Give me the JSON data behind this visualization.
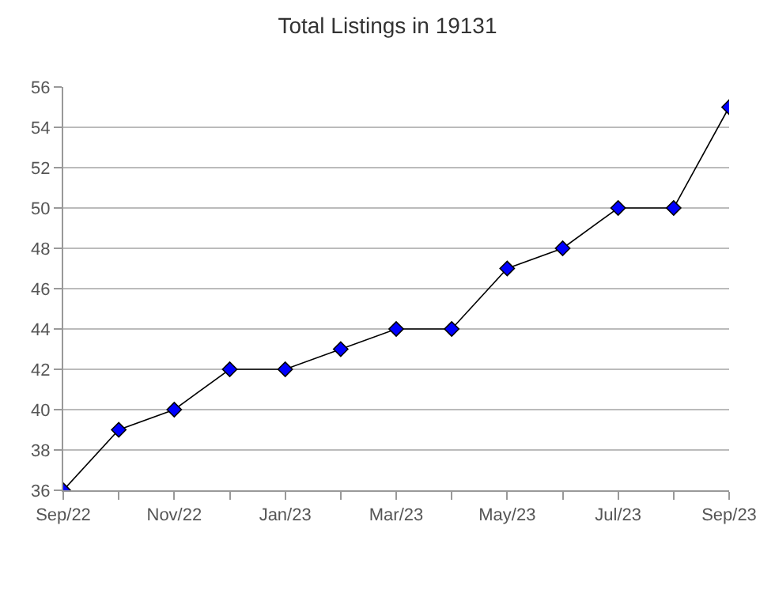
{
  "chart_data": {
    "type": "line",
    "title": "Total Listings in 19131",
    "categories": [
      "Sep/22",
      null,
      "Nov/22",
      null,
      "Jan/23",
      null,
      "Mar/23",
      null,
      "May/23",
      null,
      "Jul/23",
      null,
      "Sep/23"
    ],
    "series": [
      {
        "color": "#0000ff",
        "values": [
          36,
          39,
          40,
          42,
          42,
          43,
          44,
          44,
          47,
          48,
          50,
          50,
          55
        ]
      }
    ],
    "ylim": [
      36,
      56
    ],
    "yticks": [
      36,
      38,
      40,
      42,
      44,
      46,
      48,
      50,
      52,
      54,
      56
    ],
    "grid": "y",
    "marker": "diamond",
    "line_style": "solid"
  }
}
